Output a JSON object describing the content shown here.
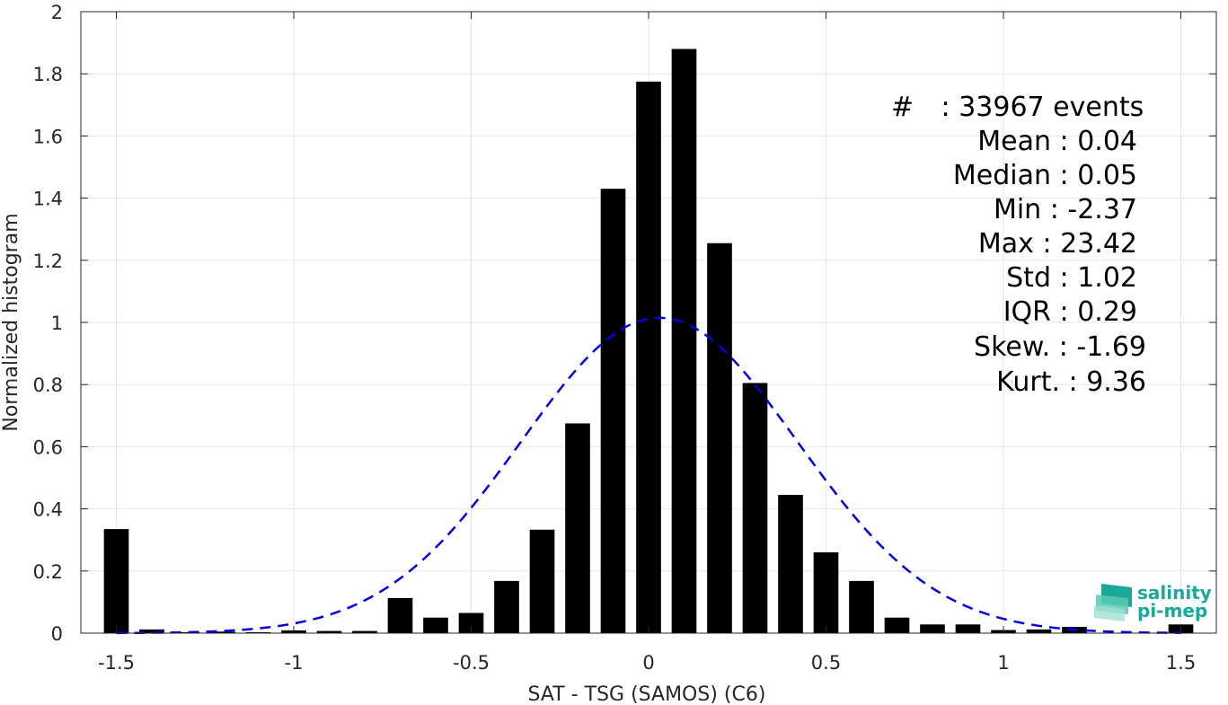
{
  "chart_data": {
    "type": "bar",
    "xlabel": "SAT - TSG (SAMOS) (C6)",
    "ylabel": "Normalized histogram",
    "xlim": [
      -1.6,
      1.6
    ],
    "ylim": [
      0,
      2
    ],
    "grid": true,
    "x_ticks": [
      {
        "value": -1.5,
        "label": "-1.5"
      },
      {
        "value": -1,
        "label": "-1"
      },
      {
        "value": -0.5,
        "label": "-0.5"
      },
      {
        "value": 0,
        "label": "0"
      },
      {
        "value": 0.5,
        "label": "0.5"
      },
      {
        "value": 1,
        "label": "1"
      },
      {
        "value": 1.5,
        "label": "1.5"
      }
    ],
    "y_ticks": [
      {
        "value": 0,
        "label": "0"
      },
      {
        "value": 0.2,
        "label": "0.2"
      },
      {
        "value": 0.4,
        "label": "0.4"
      },
      {
        "value": 0.6,
        "label": "0.6"
      },
      {
        "value": 0.8,
        "label": "0.8"
      },
      {
        "value": 1,
        "label": "1"
      },
      {
        "value": 1.2,
        "label": "1.2"
      },
      {
        "value": 1.4,
        "label": "1.4"
      },
      {
        "value": 1.6,
        "label": "1.6"
      },
      {
        "value": 1.8,
        "label": "1.8"
      },
      {
        "value": 2,
        "label": "2"
      }
    ],
    "bar_width": 0.07,
    "bar_color": "#000000",
    "bars": [
      {
        "x": -1.5,
        "y": 0.335
      },
      {
        "x": -1.4,
        "y": 0.012
      },
      {
        "x": -1.3,
        "y": 0.003
      },
      {
        "x": -1.2,
        "y": 0.005
      },
      {
        "x": -1.1,
        "y": 0.003
      },
      {
        "x": -1.0,
        "y": 0.009
      },
      {
        "x": -0.9,
        "y": 0.007
      },
      {
        "x": -0.8,
        "y": 0.007
      },
      {
        "x": -0.7,
        "y": 0.113
      },
      {
        "x": -0.6,
        "y": 0.05
      },
      {
        "x": -0.5,
        "y": 0.065
      },
      {
        "x": -0.4,
        "y": 0.168
      },
      {
        "x": -0.3,
        "y": 0.333
      },
      {
        "x": -0.2,
        "y": 0.675
      },
      {
        "x": -0.1,
        "y": 1.43
      },
      {
        "x": 0.0,
        "y": 1.775
      },
      {
        "x": 0.1,
        "y": 1.88
      },
      {
        "x": 0.2,
        "y": 1.255
      },
      {
        "x": 0.3,
        "y": 0.805
      },
      {
        "x": 0.4,
        "y": 0.445
      },
      {
        "x": 0.5,
        "y": 0.26
      },
      {
        "x": 0.6,
        "y": 0.168
      },
      {
        "x": 0.7,
        "y": 0.05
      },
      {
        "x": 0.8,
        "y": 0.028
      },
      {
        "x": 0.9,
        "y": 0.028
      },
      {
        "x": 1.0,
        "y": 0.01
      },
      {
        "x": 1.1,
        "y": 0.012
      },
      {
        "x": 1.2,
        "y": 0.02
      },
      {
        "x": 1.5,
        "y": 0.028
      }
    ],
    "fit_curve": {
      "kind": "gaussian",
      "style": "dashed",
      "color": "#0000e0",
      "mean": 0.03,
      "sigma": 0.39,
      "peak": 1.015,
      "x_range": [
        -1.5,
        1.5
      ]
    }
  },
  "stats": [
    {
      "key": "#",
      "sep": ":",
      "value": "33967 events"
    },
    {
      "key": "Mean",
      "sep": ":",
      "value": "0.04"
    },
    {
      "key": "Median",
      "sep": ":",
      "value": "0.05"
    },
    {
      "key": "Min",
      "sep": ":",
      "value": "-2.37"
    },
    {
      "key": "Max",
      "sep": ":",
      "value": "23.42"
    },
    {
      "key": "Std",
      "sep": ":",
      "value": "1.02"
    },
    {
      "key": "IQR",
      "sep": ":",
      "value": "0.29"
    },
    {
      "key": "Skew.",
      "sep": ":",
      "value": "-1.69"
    },
    {
      "key": "Kurt.",
      "sep": ":",
      "value": "9.36"
    }
  ],
  "logo": {
    "line1": "salinity",
    "line2": "pi-mep",
    "color": "#1aa89a"
  }
}
